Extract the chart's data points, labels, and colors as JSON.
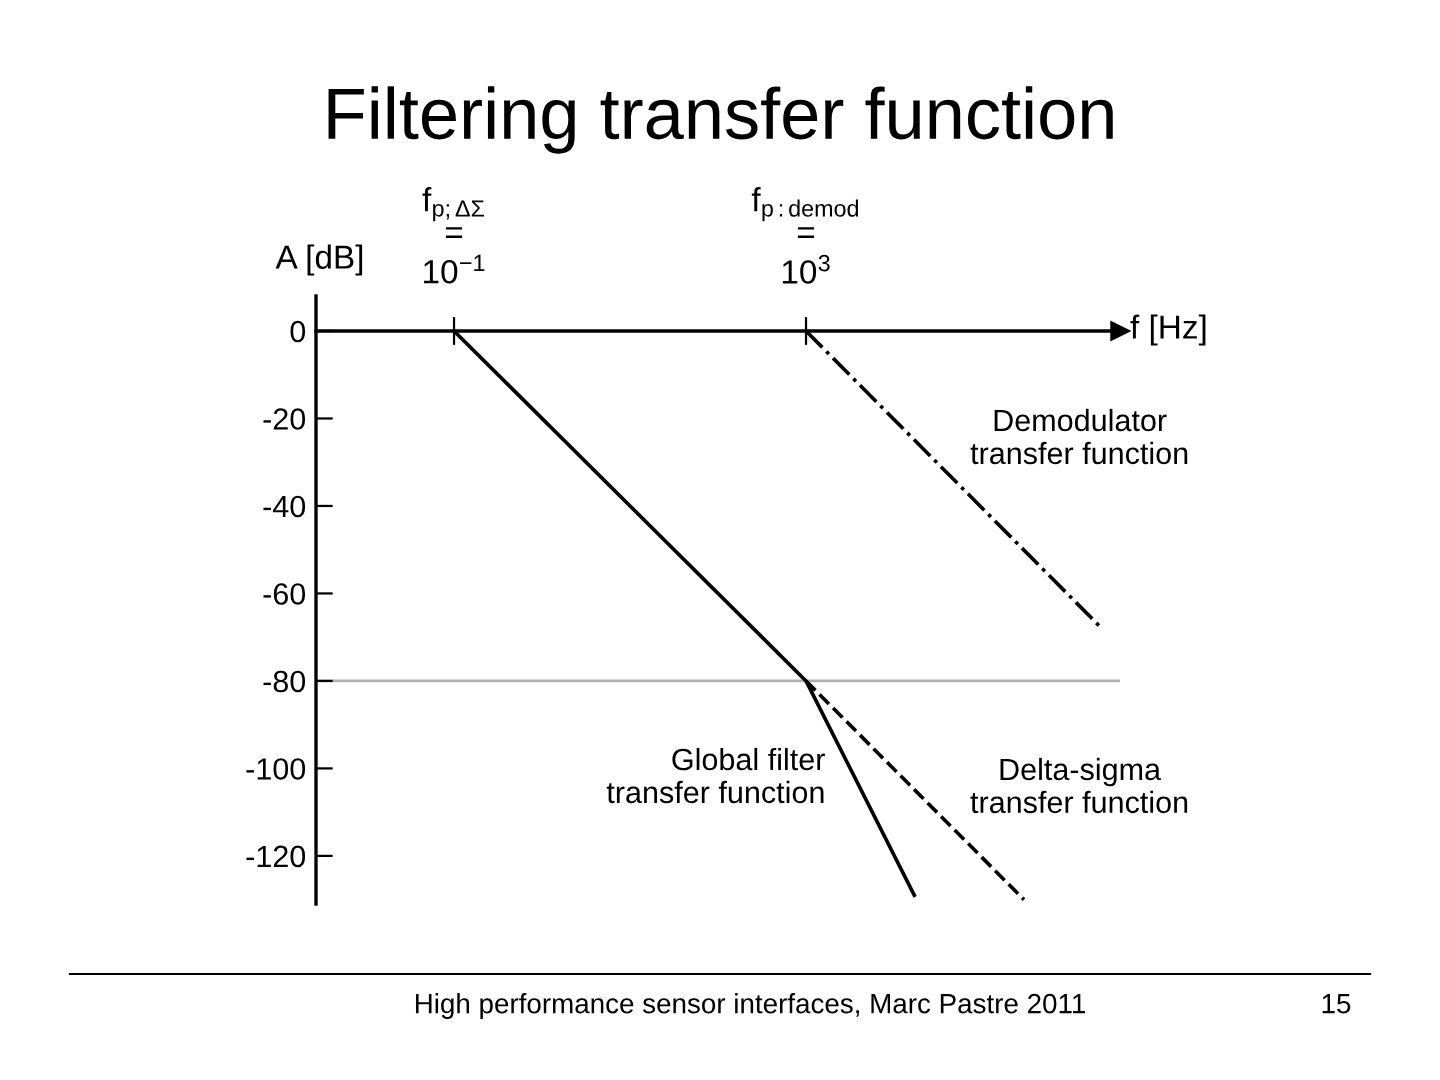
{
  "chart_data": {
    "type": "line",
    "title": "Filtering transfer function",
    "xlabel": "f [Hz]",
    "ylabel": "A [dB]",
    "log": "x",
    "xlim": [
      0.0027,
      3700000
    ],
    "ylim": [
      -131,
      8
    ],
    "xticks": [
      {
        "value": 0.1,
        "label": "10$^{−1}$"
      },
      {
        "value": 1000,
        "label": "10$^{3}$"
      }
    ],
    "yticks": [
      0,
      -20,
      -40,
      -60,
      -80,
      -100,
      -120
    ],
    "grid": false,
    "marker": "none",
    "ref_lines": [
      {
        "axis": "y",
        "value": -80,
        "label": null,
        "color": "#b0b0b0"
      }
    ],
    "series": [
      {
        "name": "Global filter\ntransfer function",
        "color": "#000000",
        "line_style": "solid",
        "x": [
          0.1,
          1000,
          17000
        ],
        "values": [
          0,
          -80,
          -129
        ]
      },
      {
        "name": "Delta-sigma\ntransfer function",
        "color": "#000000",
        "line_style": "dashed",
        "x": [
          1000,
          300000
        ],
        "values": [
          -80,
          -130
        ]
      },
      {
        "name": "Demodulator\ntransfer function",
        "color": "#000000",
        "line_style": "dashdot",
        "x": [
          1000,
          2300000
        ],
        "values": [
          0,
          -68
        ]
      }
    ],
    "annotations": [
      "f$_{p;ΔΣ}$\n=",
      "f$_{p:demod}$\n=",
      "High performance sensor interfaces, Marc Pastre 2011",
      "15"
    ]
  }
}
